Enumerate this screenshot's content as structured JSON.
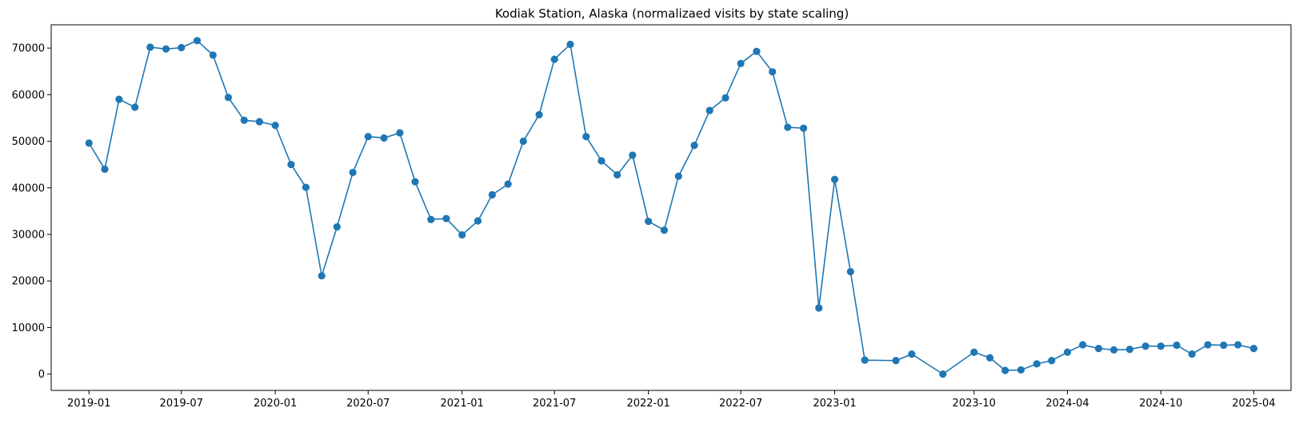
{
  "chart_data": {
    "type": "line",
    "title": "Kodiak Station, Alaska (normalizaed visits by state scaling)",
    "xlabel": "",
    "ylabel": "",
    "x_ticks": [
      "2019-01",
      "2019-07",
      "2020-01",
      "2020-07",
      "2021-01",
      "2021-07",
      "2022-01",
      "2022-07",
      "2023-01",
      "2023-10",
      "2024-04",
      "2024-10",
      "2025-04"
    ],
    "y_ticks": [
      0,
      10000,
      20000,
      30000,
      40000,
      50000,
      60000,
      70000
    ],
    "ylim": [
      -3500,
      75000
    ],
    "xlim": [
      "2018-10-19",
      "2025-06-13"
    ],
    "grid": false,
    "color": "#1f77b4",
    "marker": "circle",
    "series": [
      {
        "x": [
          "2019-01-01",
          "2019-02-01",
          "2019-03-01",
          "2019-04-01",
          "2019-05-01",
          "2019-06-01",
          "2019-07-01",
          "2019-08-01",
          "2019-09-01",
          "2019-10-01",
          "2019-11-01",
          "2019-12-01",
          "2020-01-01",
          "2020-02-01",
          "2020-03-01",
          "2020-04-01",
          "2020-05-01",
          "2020-06-01",
          "2020-07-01",
          "2020-08-01",
          "2020-09-01",
          "2020-10-01",
          "2020-11-01",
          "2020-12-01",
          "2021-01-01",
          "2021-02-01",
          "2021-03-01",
          "2021-04-01",
          "2021-05-01",
          "2021-06-01",
          "2021-07-01",
          "2021-08-01",
          "2021-09-01",
          "2021-10-01",
          "2021-11-01",
          "2021-12-01",
          "2022-01-01",
          "2022-02-01",
          "2022-03-01",
          "2022-04-01",
          "2022-05-01",
          "2022-06-01",
          "2022-07-01",
          "2022-08-01",
          "2022-09-01",
          "2022-10-01",
          "2022-11-01",
          "2022-12-01",
          "2023-01-01",
          "2023-02-01",
          "2023-03-01",
          "2023-05-01",
          "2023-06-01",
          "2023-08-01",
          "2023-10-01",
          "2023-11-01",
          "2023-12-01",
          "2024-01-01",
          "2024-02-01",
          "2024-03-01",
          "2024-04-01",
          "2024-05-01",
          "2024-06-01",
          "2024-07-01",
          "2024-08-01",
          "2024-09-01",
          "2024-10-01",
          "2024-11-01",
          "2024-12-01",
          "2025-01-01",
          "2025-02-01",
          "2025-03-01",
          "2025-04-01"
        ],
        "y": [
          49600,
          44000,
          59000,
          57300,
          70200,
          69800,
          70100,
          71600,
          68500,
          59400,
          54500,
          54200,
          53400,
          45000,
          40100,
          21100,
          31600,
          43300,
          51000,
          50700,
          51800,
          41300,
          33200,
          33400,
          29900,
          32900,
          38500,
          40800,
          50000,
          55700,
          67600,
          70800,
          51000,
          45800,
          42800,
          47000,
          32800,
          30900,
          42500,
          49100,
          56600,
          59300,
          66700,
          69300,
          64900,
          53000,
          52800,
          14200,
          41800,
          22000,
          3000,
          2900,
          4300,
          0,
          4700,
          3500,
          800,
          900,
          2200,
          2900,
          4700,
          6300,
          5500,
          5200,
          5300,
          6000,
          6000,
          6200,
          4300,
          6300,
          6200,
          6300,
          5500
        ]
      }
    ]
  }
}
